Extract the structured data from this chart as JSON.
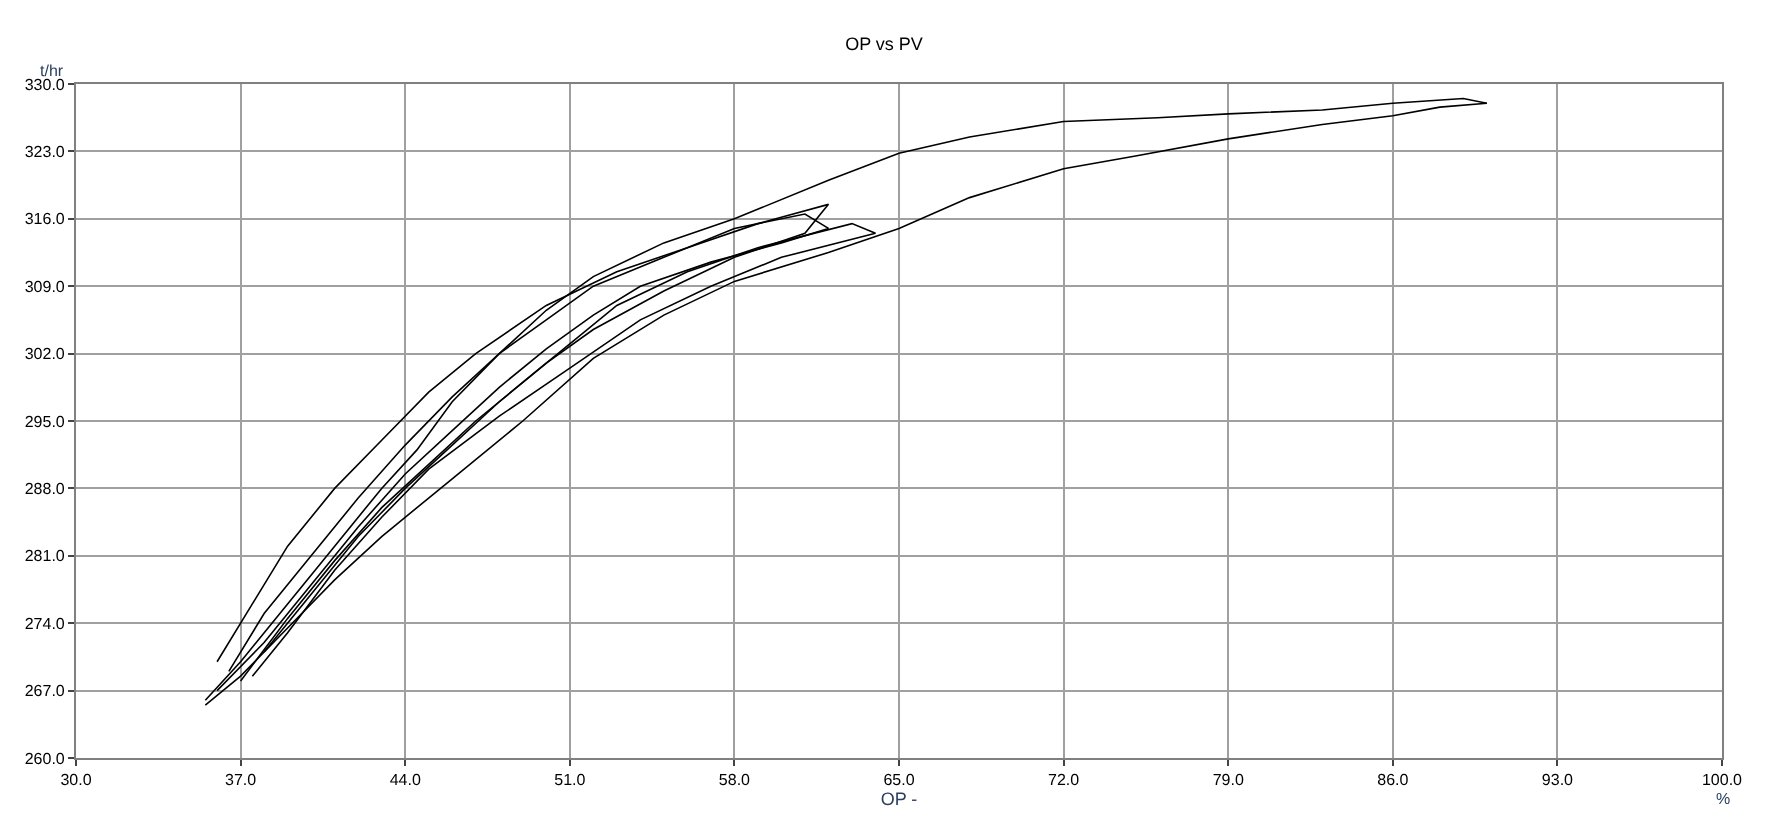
{
  "chart_data": {
    "type": "line",
    "title": "OP vs PV",
    "xlabel": "OP -",
    "ylabel": "t/hr",
    "annotations": [
      "%"
    ],
    "xlim": [
      30,
      100
    ],
    "ylim": [
      260,
      330
    ],
    "xticks": [
      {
        "value": 30,
        "label": "30.0"
      },
      {
        "value": 37,
        "label": "37.0"
      },
      {
        "value": 44,
        "label": "44.0"
      },
      {
        "value": 51,
        "label": "51.0"
      },
      {
        "value": 58,
        "label": "58.0"
      },
      {
        "value": 65,
        "label": "65.0"
      },
      {
        "value": 72,
        "label": "72.0"
      },
      {
        "value": 79,
        "label": "79.0"
      },
      {
        "value": 86,
        "label": "86.0"
      },
      {
        "value": 93,
        "label": "93.0"
      },
      {
        "value": 100,
        "label": "100.0"
      }
    ],
    "yticks": [
      {
        "value": 260,
        "label": "260.0"
      },
      {
        "value": 267,
        "label": "267.0"
      },
      {
        "value": 274,
        "label": "274.0"
      },
      {
        "value": 281,
        "label": "281.0"
      },
      {
        "value": 288,
        "label": "288.0"
      },
      {
        "value": 295,
        "label": "295.0"
      },
      {
        "value": 302,
        "label": "302.0"
      },
      {
        "value": 309,
        "label": "309.0"
      },
      {
        "value": 316,
        "label": "316.0"
      },
      {
        "value": 323,
        "label": "323.0"
      },
      {
        "value": 330,
        "label": "330.0"
      }
    ],
    "grid": true,
    "marker": "none",
    "line_style": "solid",
    "series": [
      {
        "color": "#000000",
        "x": [
          35.5,
          37,
          39,
          41,
          43,
          44.5,
          46,
          48,
          50,
          52,
          55,
          58,
          62,
          65,
          68,
          72,
          76,
          79,
          83,
          86,
          89,
          90
        ],
        "values": [
          266,
          270,
          276,
          282,
          288,
          292,
          297,
          302,
          306.5,
          310,
          313.5,
          316,
          320,
          322.8,
          324.5,
          326.1,
          326.5,
          326.9,
          327.3,
          328,
          328.5,
          328
        ]
      },
      {
        "color": "#000000",
        "x": [
          90,
          88,
          86,
          83,
          79,
          75,
          72,
          68,
          65,
          62,
          58,
          55,
          52,
          49,
          46,
          43,
          41,
          39,
          37,
          35.5
        ],
        "values": [
          328,
          327.6,
          326.7,
          325.8,
          324.3,
          322.5,
          321.2,
          318.2,
          315,
          312.5,
          309.5,
          306,
          301.5,
          295,
          289,
          283,
          278.5,
          273.5,
          268.5,
          265.5
        ]
      },
      {
        "color": "#000000",
        "x": [
          36,
          38,
          40,
          42,
          44,
          46,
          48,
          50,
          52,
          54,
          57,
          60,
          62,
          61,
          58,
          55,
          52,
          50,
          48,
          46,
          44,
          42,
          40,
          38,
          36.5
        ],
        "values": [
          267,
          272,
          278,
          284,
          289.5,
          294,
          298.5,
          302.5,
          306,
          309,
          311.5,
          313.5,
          315,
          316.5,
          315,
          312,
          309,
          305.5,
          302,
          297.5,
          292.5,
          287,
          281,
          275,
          269
        ]
      },
      {
        "color": "#000000",
        "x": [
          37,
          39,
          41,
          43,
          45,
          47,
          49,
          51,
          53,
          56,
          59,
          63,
          64,
          60,
          57,
          54,
          51,
          48,
          45,
          43,
          41,
          39,
          37.5
        ],
        "values": [
          268,
          274.5,
          280.5,
          286,
          290.5,
          295,
          299,
          303,
          307,
          310.5,
          313,
          315.5,
          314.5,
          312,
          309,
          305.5,
          300.5,
          295.5,
          290,
          285,
          279.5,
          273,
          268.5
        ]
      },
      {
        "color": "#000000",
        "x": [
          38,
          40,
          42,
          44,
          46,
          48,
          50,
          52,
          55,
          58,
          61,
          62,
          59,
          56,
          53,
          50,
          47,
          45,
          43,
          41,
          39,
          37.5,
          36
        ],
        "values": [
          271,
          277,
          283,
          288,
          292.5,
          297,
          301,
          304.5,
          308.5,
          312,
          314.5,
          317.5,
          315.5,
          313,
          310.5,
          307,
          302,
          298,
          293,
          288,
          282,
          276,
          270
        ]
      }
    ]
  }
}
